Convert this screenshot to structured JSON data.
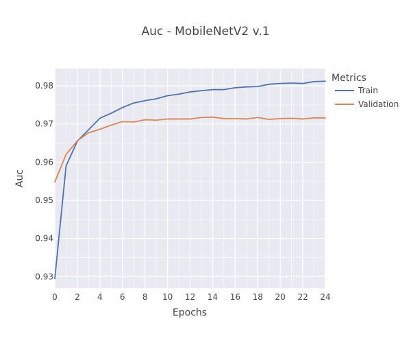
{
  "chart_data": {
    "type": "line",
    "title": "Auc - MobileNetV2 v.1",
    "xlabel": "Epochs",
    "ylabel": "Auc",
    "xlim": [
      0,
      24
    ],
    "ylim": [
      0.927,
      0.9845
    ],
    "x_ticks": [
      0,
      2,
      4,
      6,
      8,
      10,
      12,
      14,
      16,
      18,
      20,
      22,
      24
    ],
    "y_ticks": [
      0.93,
      0.94,
      0.95,
      0.96,
      0.97,
      0.98
    ],
    "y_tick_labels": [
      "0.93",
      "0.94",
      "0.95",
      "0.96",
      "0.97",
      "0.98"
    ],
    "grid": true,
    "legend_title": "Metrics",
    "legend_position": "right",
    "x": [
      0,
      1,
      2,
      3,
      4,
      5,
      6,
      7,
      8,
      9,
      10,
      11,
      12,
      13,
      14,
      15,
      16,
      17,
      18,
      19,
      20,
      21,
      22,
      23,
      24
    ],
    "series": [
      {
        "name": "Train",
        "color": "#4c72b0",
        "values": [
          0.9295,
          0.959,
          0.9655,
          0.9685,
          0.9715,
          0.9728,
          0.9743,
          0.9755,
          0.9761,
          0.9766,
          0.9774,
          0.9778,
          0.9784,
          0.9787,
          0.979,
          0.979,
          0.9795,
          0.9797,
          0.9798,
          0.9804,
          0.9806,
          0.9807,
          0.9806,
          0.9811,
          0.9812
        ]
      },
      {
        "name": "Validation",
        "color": "#dd8452",
        "values": [
          0.9548,
          0.962,
          0.9656,
          0.9677,
          0.9686,
          0.9697,
          0.9706,
          0.9705,
          0.9711,
          0.971,
          0.9713,
          0.9713,
          0.9713,
          0.9717,
          0.9718,
          0.9714,
          0.9714,
          0.9713,
          0.9717,
          0.9712,
          0.9714,
          0.9715,
          0.9713,
          0.9716,
          0.9716
        ]
      }
    ]
  }
}
